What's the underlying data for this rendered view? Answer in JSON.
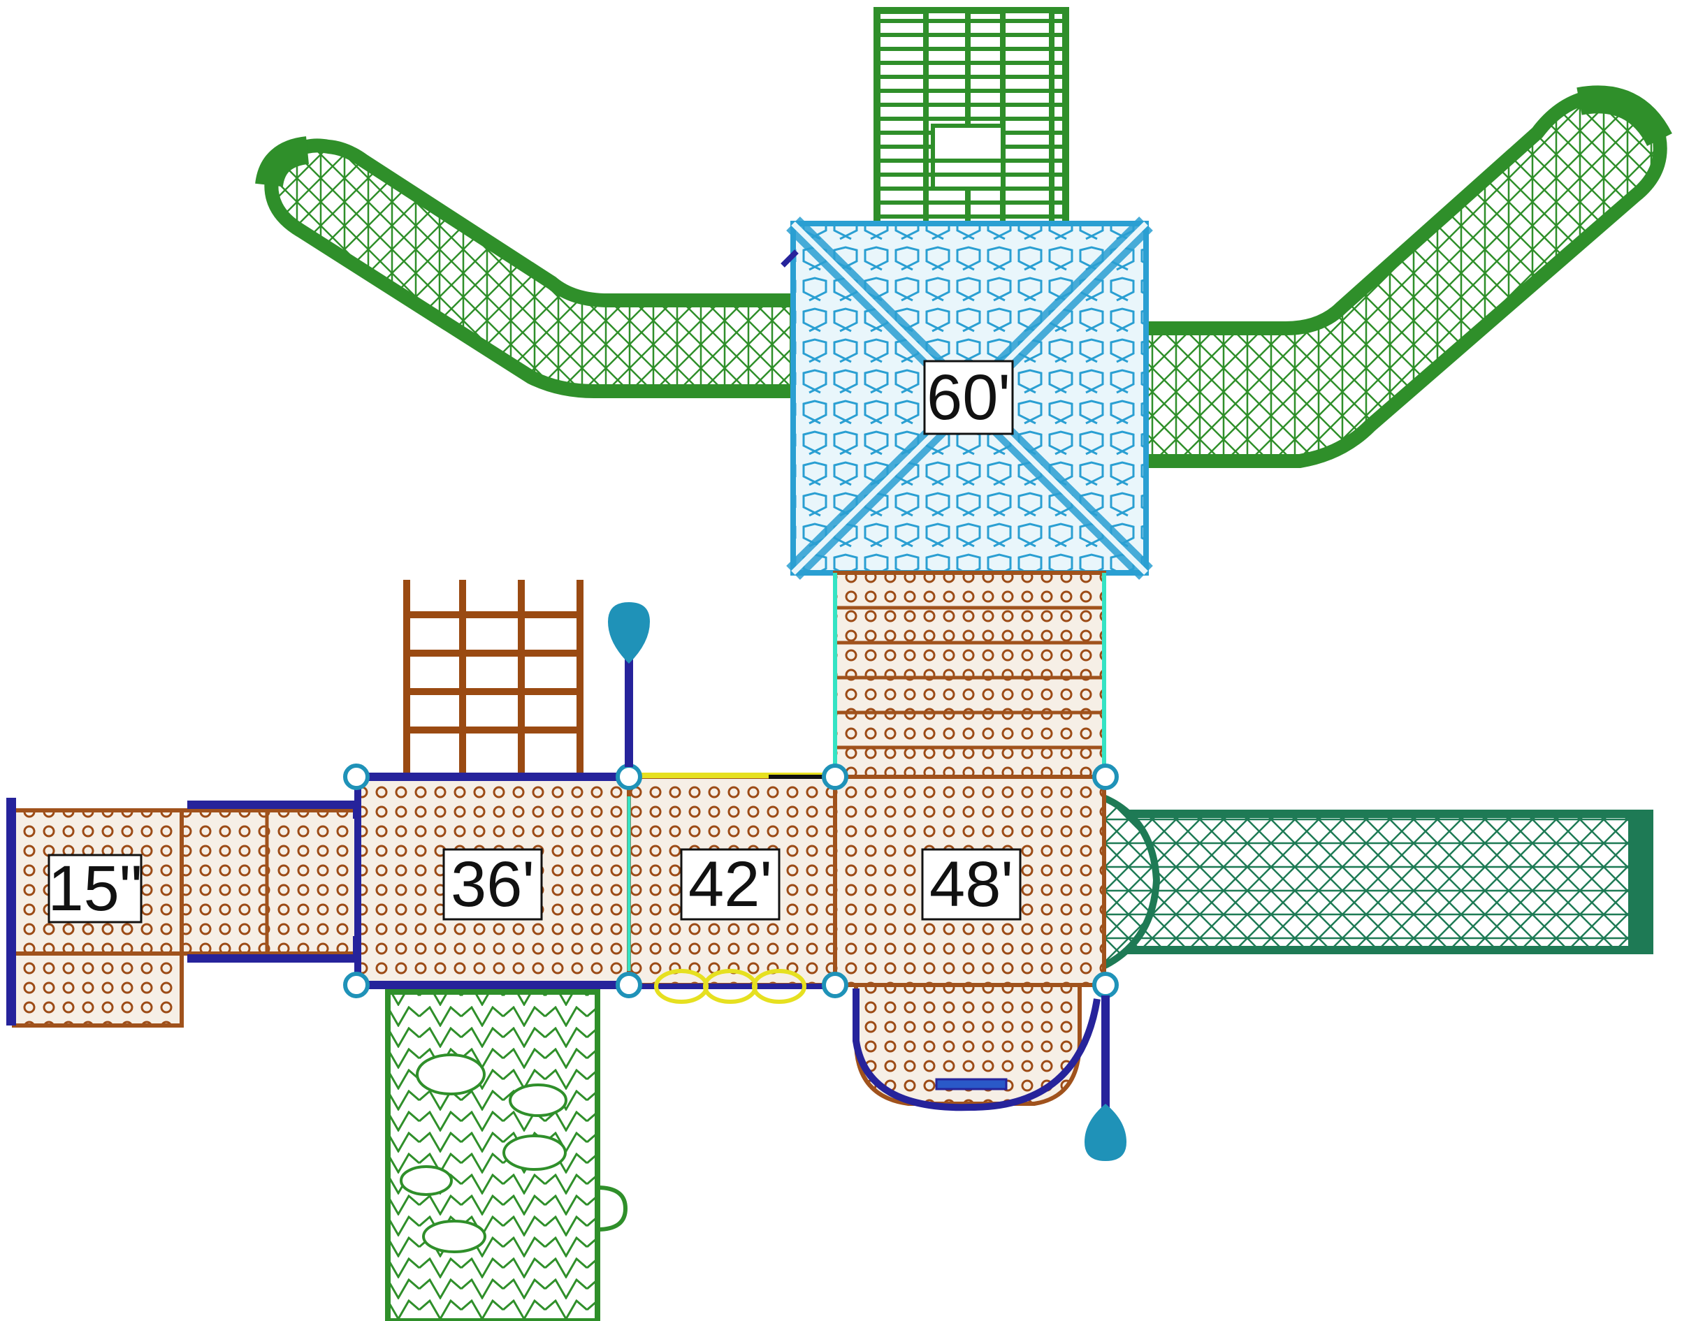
{
  "platforms": [
    {
      "id": "platform-15",
      "height_label": "15\""
    },
    {
      "id": "platform-36",
      "height_label": "36'"
    },
    {
      "id": "platform-42",
      "height_label": "42'"
    },
    {
      "id": "platform-48",
      "height_label": "48'"
    },
    {
      "id": "roof-60",
      "height_label": "60'"
    }
  ],
  "colors": {
    "deck": "#a0521c",
    "deck_fill": "#c8925c",
    "slide_green": "#2f8f2a",
    "tube_green": "#1e7a55",
    "roof_blue": "#2a9fd2",
    "rail_navy": "#26239b",
    "post_teal": "#1f92b8",
    "ladder_brown": "#9a4a12",
    "yellow": "#e6e020",
    "aqua": "#35e3c4"
  }
}
